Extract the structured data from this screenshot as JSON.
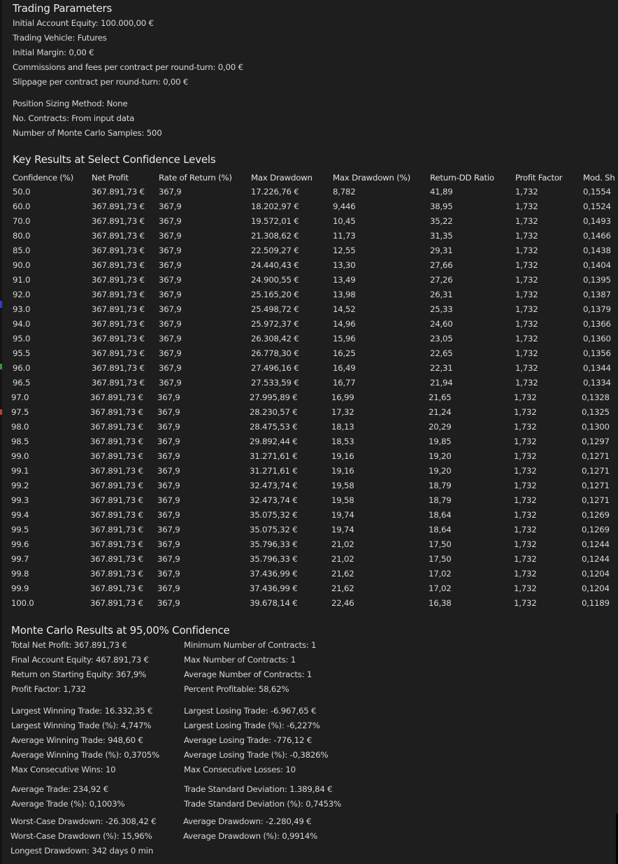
{
  "trading_parameters": {
    "title": "Trading Parameters",
    "initial_account_equity": "Initial Account Equity: 100.000,00 €",
    "trading_vehicle": "Trading Vehicle: Futures",
    "initial_margin": "Initial Margin: 0,00 €",
    "commissions": "Commissions and fees per contract per round-turn: 0,00 €",
    "slippage": "Slippage per contract per round-turn: 0,00 €",
    "position_sizing": "Position Sizing Method: None",
    "no_contracts": "No. Contracts: From input data",
    "mc_samples": "Number of Monte Carlo Samples: 500"
  },
  "key_results": {
    "title": "Key Results at Select Confidence Levels",
    "columns": [
      "Confidence (%)",
      "Net Profit",
      "Rate of Return (%)",
      "Max Drawdown",
      "Max Drawdown (%)",
      "Return-DD Ratio",
      "Profit Factor",
      "Mod. Sh"
    ],
    "rows": [
      [
        "50.0",
        "367.891,73 €",
        "367,9",
        "17.226,76 €",
        "8,782",
        "41,89",
        "1,732",
        "0,1554"
      ],
      [
        "60.0",
        "367.891,73 €",
        "367,9",
        "18.202,97 €",
        "9,446",
        "38,95",
        "1,732",
        "0,1524"
      ],
      [
        "70.0",
        "367.891,73 €",
        "367,9",
        "19.572,01 €",
        "10,45",
        "35,22",
        "1,732",
        "0,1493"
      ],
      [
        "80.0",
        "367.891,73 €",
        "367,9",
        "21.308,62 €",
        "11,73",
        "31,35",
        "1,732",
        "0,1466"
      ],
      [
        "85.0",
        "367.891,73 €",
        "367,9",
        "22.509,27 €",
        "12,55",
        "29,31",
        "1,732",
        "0,1438"
      ],
      [
        "90.0",
        "367.891,73 €",
        "367,9",
        "24.440,43 €",
        "13,30",
        "27,66",
        "1,732",
        "0,1404"
      ],
      [
        "91.0",
        "367.891,73 €",
        "367,9",
        "24.900,55 €",
        "13,49",
        "27,26",
        "1,732",
        "0,1395"
      ],
      [
        "92.0",
        "367.891,73 €",
        "367,9",
        "25.165,20 €",
        "13,98",
        "26,31",
        "1,732",
        "0,1387"
      ],
      [
        "93.0",
        "367.891,73 €",
        "367,9",
        "25.498,72 €",
        "14,52",
        "25,33",
        "1,732",
        "0,1379"
      ],
      [
        "94.0",
        "367.891,73 €",
        "367,9",
        "25.972,37 €",
        "14,96",
        "24,60",
        "1,732",
        "0,1366"
      ],
      [
        "95.0",
        "367.891,73 €",
        "367,9",
        "26.308,42 €",
        "15,96",
        "23,05",
        "1,732",
        "0,1360"
      ],
      [
        "95.5",
        "367.891,73 €",
        "367,9",
        "26.778,30 €",
        "16,25",
        "22,65",
        "1,732",
        "0,1356"
      ],
      [
        "96.0",
        "367.891,73 €",
        "367,9",
        "27.496,16 €",
        "16,49",
        "22,31",
        "1,732",
        "0,1344"
      ],
      [
        "96.5",
        "367.891,73 €",
        "367,9",
        "27.533,59 €",
        "16,77",
        "21,94",
        "1,732",
        "0,1334"
      ],
      [
        "97.0",
        "367.891,73 €",
        "367,9",
        "27.995,89 €",
        "16,99",
        "21,65",
        "1,732",
        "0,1328"
      ],
      [
        "97.5",
        "367.891,73 €",
        "367,9",
        "28.230,57 €",
        "17,32",
        "21,24",
        "1,732",
        "0,1325"
      ],
      [
        "98.0",
        "367.891,73 €",
        "367,9",
        "28.475,53 €",
        "18,13",
        "20,29",
        "1,732",
        "0,1300"
      ],
      [
        "98.5",
        "367.891,73 €",
        "367,9",
        "29.892,44 €",
        "18,53",
        "19,85",
        "1,732",
        "0,1297"
      ],
      [
        "99.0",
        "367.891,73 €",
        "367,9",
        "31.271,61 €",
        "19,16",
        "19,20",
        "1,732",
        "0,1271"
      ],
      [
        "99.1",
        "367.891,73 €",
        "367,9",
        "31.271,61 €",
        "19,16",
        "19,20",
        "1,732",
        "0,1271"
      ],
      [
        "99.2",
        "367.891,73 €",
        "367,9",
        "32.473,74 €",
        "19,58",
        "18,79",
        "1,732",
        "0,1271"
      ],
      [
        "99.3",
        "367.891,73 €",
        "367,9",
        "32.473,74 €",
        "19,58",
        "18,79",
        "1,732",
        "0,1271"
      ],
      [
        "99.4",
        "367.891,73 €",
        "367,9",
        "35.075,32 €",
        "19,74",
        "18,64",
        "1,732",
        "0,1269"
      ],
      [
        "99.5",
        "367.891,73 €",
        "367,9",
        "35.075,32 €",
        "19,74",
        "18,64",
        "1,732",
        "0,1269"
      ],
      [
        "99.6",
        "367.891,73 €",
        "367,9",
        "35.796,33 €",
        "21,02",
        "17,50",
        "1,732",
        "0,1244"
      ],
      [
        "99.7",
        "367.891,73 €",
        "367,9",
        "35.796,33 €",
        "21,02",
        "17,50",
        "1,732",
        "0,1244"
      ],
      [
        "99.8",
        "367.891,73 €",
        "367,9",
        "37.436,99 €",
        "21,62",
        "17,02",
        "1,732",
        "0,1204"
      ],
      [
        "99.9",
        "367.891,73 €",
        "367,9",
        "37.436,99 €",
        "21,62",
        "17,02",
        "1,732",
        "0,1204"
      ],
      [
        "100.0",
        "367.891,73 €",
        "367,9",
        "39.678,14 €",
        "22,46",
        "16,38",
        "1,732",
        "0,1189"
      ]
    ]
  },
  "mc_results": {
    "title": "Monte Carlo Results at 95,00% Confidence",
    "left": [
      "Total Net Profit: 367.891,73 €",
      "Final Account Equity: 467.891,73 €",
      "Return on Starting Equity: 367,9%",
      "Profit Factor: 1,732",
      "Largest Winning Trade: 16.332,35 €",
      "Largest Winning Trade (%): 4,747%",
      "Average Winning Trade: 948,60 €",
      "Average Winning Trade (%): 0,3705%",
      "Max Consecutive Wins: 10",
      "Average Trade: 234,92 €",
      "Average Trade (%): 0,1003%",
      "Worst-Case Drawdown: -26.308,42 €",
      "Worst-Case Drawdown (%): 15,96%",
      "Longest Drawdown: 342 days 0 min"
    ],
    "right": [
      "Minimum Number of Contracts: 1",
      "Max Number of Contracts: 1",
      "Average Number of Contracts: 1",
      "Percent Profitable: 58,62%",
      "Largest Losing Trade: -6.967,65 €",
      "Largest Losing Trade (%): -6,227%",
      "Average Losing Trade: -776,12 €",
      "Average Losing Trade (%): -0,3826%",
      "Max Consecutive Losses: 10",
      "Trade Standard Deviation: 1.389,84 €",
      "Trade Standard Deviation (%): 0,7453%",
      "Average Drawdown: -2.280,49 €",
      "Average Drawdown (%): 0,9914%"
    ]
  },
  "colors": {
    "panel_bg": "#1e1e1e",
    "text": "#d6d6d6",
    "title": "#ebebeb",
    "edge_mark_blue": "#2f3fd0",
    "edge_mark_green": "#2f9a3a",
    "edge_mark_red": "#c23a3a"
  }
}
